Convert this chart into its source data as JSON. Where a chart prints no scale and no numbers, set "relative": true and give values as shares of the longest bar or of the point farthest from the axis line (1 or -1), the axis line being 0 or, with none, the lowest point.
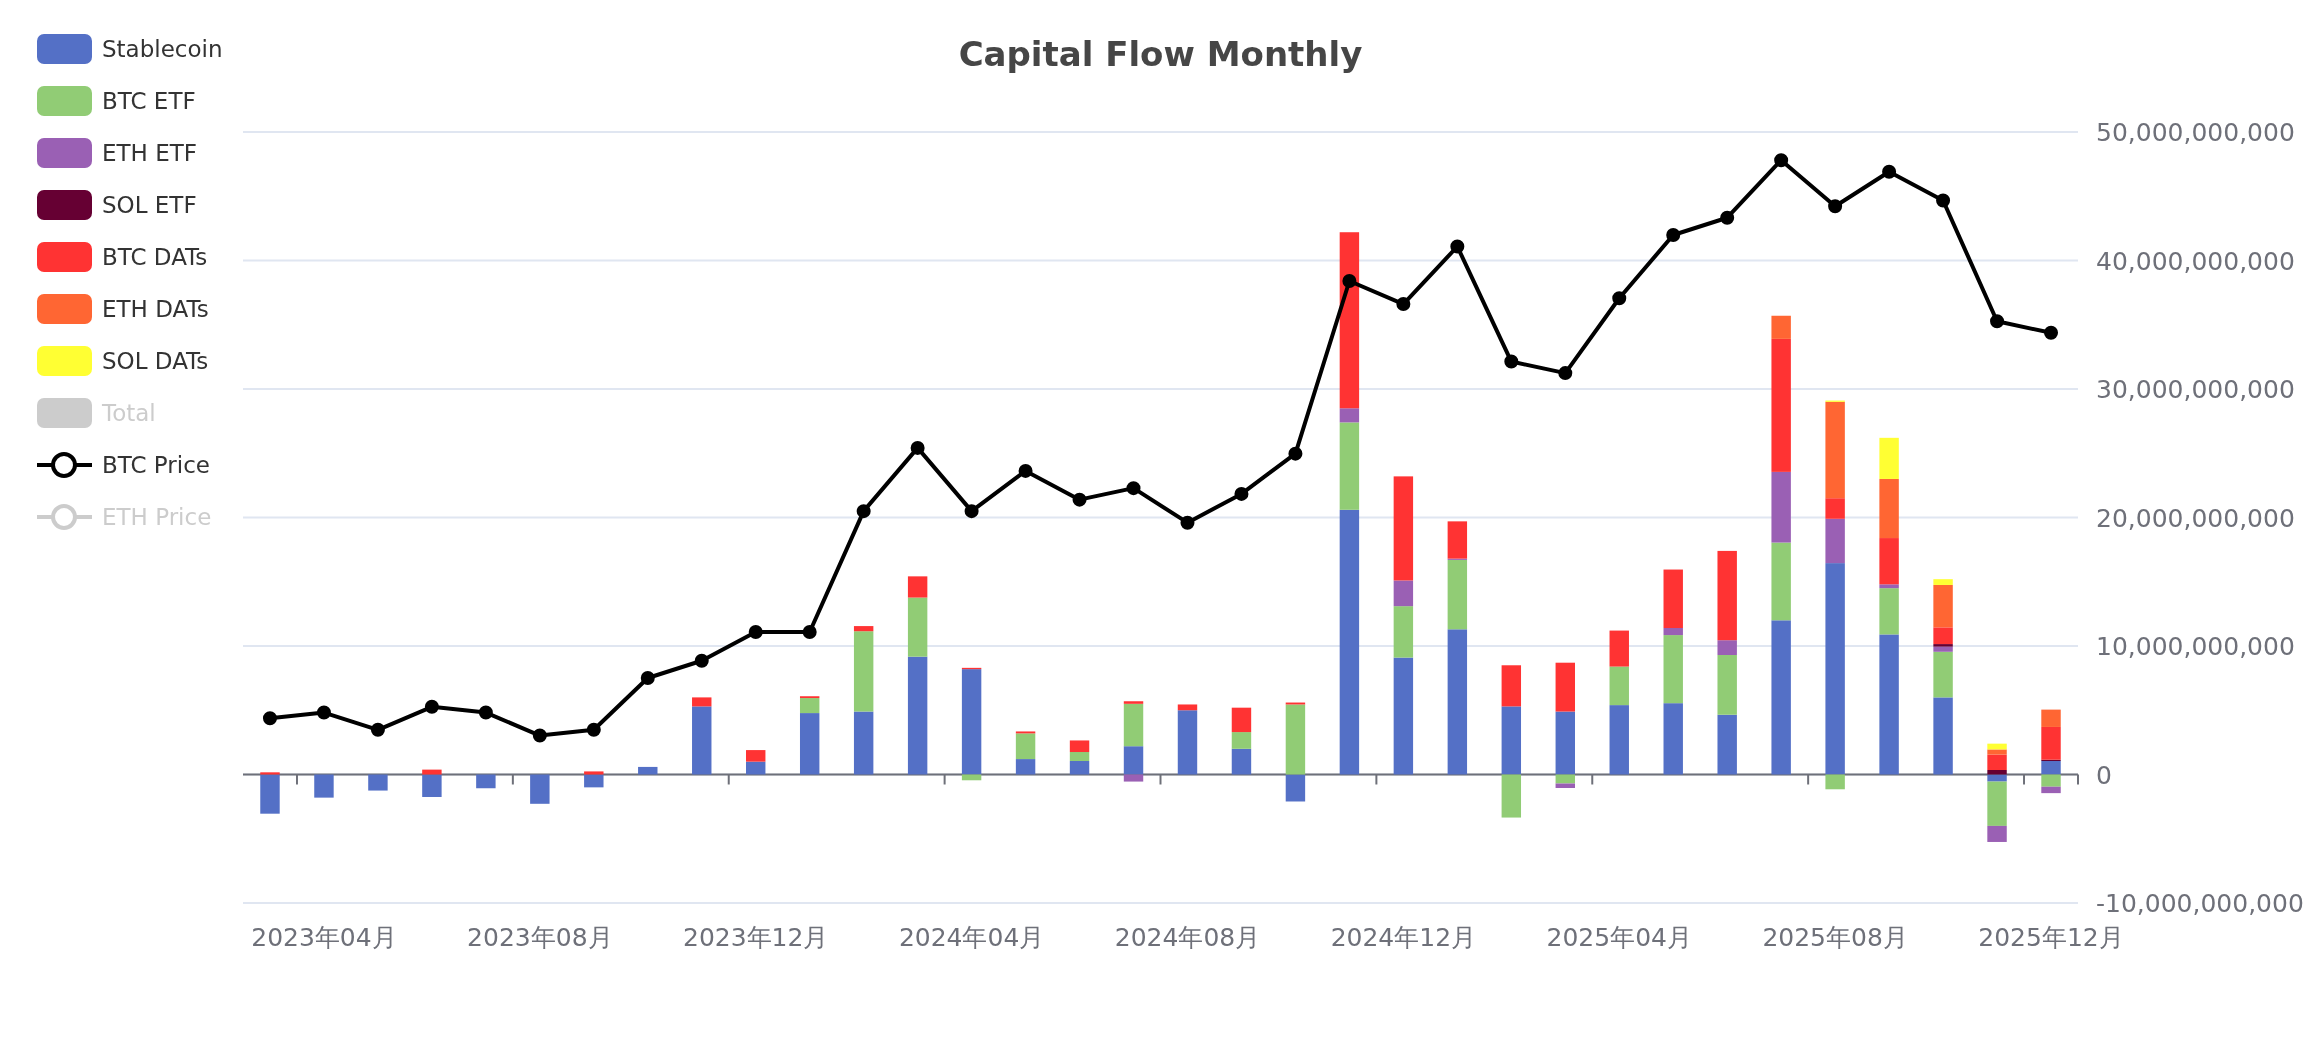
{
  "chart_data": [
    {
      "type": "bar",
      "title": "Capital Flow Monthly",
      "stacked": true,
      "legend": "left",
      "grid": "y",
      "categories": [
        null,
        "2023年04月",
        null,
        null,
        null,
        "2023年08月",
        null,
        null,
        null,
        "2023年12月",
        null,
        null,
        null,
        "2024年04月",
        null,
        null,
        null,
        "2024年08月",
        null,
        null,
        null,
        "2024年12月",
        null,
        null,
        null,
        "2025年04月",
        null,
        null,
        null,
        "2025年08月",
        null,
        null,
        null,
        "2025年12月"
      ],
      "ylim": [
        -10000000000.0,
        50000000000.0
      ],
      "yticks": [
        {
          "value": -10000000000.0,
          "label": "-10,000,000,000"
        },
        0,
        {
          "value": 10000000000.0,
          "label": "10,000,000,000"
        },
        {
          "value": 20000000000.0,
          "label": "20,000,000,000"
        },
        {
          "value": 30000000000.0,
          "label": "30,000,000,000"
        },
        {
          "value": 40000000000.0,
          "label": "40,000,000,000"
        },
        {
          "value": 50000000000.0,
          "label": "50,000,000,000"
        }
      ],
      "series": [
        {
          "name": "Stablecoin",
          "color": "#5470c6",
          "values": [
            -3050000000.0,
            -1800000000.0,
            -1250000000.0,
            -1750000000.0,
            -1070000000.0,
            -2280000000.0,
            -1000000000.0,
            590000000.0,
            5300000000.0,
            1000000000.0,
            4780000000.0,
            4900000000.0,
            9170000000.0,
            8200000000.0,
            1200000000.0,
            1050000000.0,
            2200000000.0,
            5000000000.0,
            2000000000.0,
            -2100000000.0,
            20600000000.0,
            9100000000.0,
            11300000000.0,
            5300000000.0,
            4900000000.0,
            5400000000.0,
            5550000000.0,
            4650000000.0,
            12000000000.0,
            16450000000.0,
            10900000000.0,
            6000000000.0,
            -550000000.0,
            1050000000.0
          ]
        },
        {
          "name": "BTC ETF",
          "color": "#91cc75",
          "values": [
            null,
            null,
            null,
            null,
            null,
            null,
            null,
            null,
            null,
            null,
            1170000000.0,
            6250000000.0,
            4600000000.0,
            -450000000.0,
            2000000000.0,
            700000000.0,
            3300000000.0,
            null,
            1300000000.0,
            5450000000.0,
            6800000000.0,
            4000000000.0,
            5400000000.0,
            -3350000000.0,
            -700000000.0,
            3000000000.0,
            5300000000.0,
            4650000000.0,
            6050000000.0,
            -1150000000.0,
            3600000000.0,
            3550000000.0,
            -3450000000.0,
            -950000000.0
          ]
        },
        {
          "name": "ETH ETF",
          "color": "#9a60b4",
          "values": [
            null,
            null,
            null,
            null,
            null,
            null,
            null,
            null,
            null,
            null,
            null,
            null,
            null,
            null,
            null,
            null,
            -550000000.0,
            null,
            null,
            null,
            1100000000.0,
            2000000000.0,
            100000000.0,
            null,
            -350000000.0,
            null,
            550000000.0,
            1150000000.0,
            5500000000.0,
            3450000000.0,
            300000000.0,
            400000000.0,
            -1250000000.0,
            -500000000.0
          ]
        },
        {
          "name": "SOL ETF",
          "color": "#660033",
          "values": [
            null,
            null,
            null,
            null,
            null,
            null,
            null,
            null,
            null,
            null,
            null,
            null,
            null,
            null,
            null,
            null,
            null,
            null,
            null,
            null,
            null,
            null,
            null,
            null,
            null,
            null,
            null,
            null,
            null,
            null,
            null,
            200000000.0,
            350000000.0,
            100000000.0
          ]
        },
        {
          "name": "BTC DATs",
          "color": "#ff3333",
          "values": [
            170000000.0,
            null,
            null,
            380000000.0,
            null,
            null,
            240000000.0,
            null,
            700000000.0,
            900000000.0,
            140000000.0,
            400000000.0,
            1650000000.0,
            100000000.0,
            150000000.0,
            900000000.0,
            200000000.0,
            450000000.0,
            1900000000.0,
            150000000.0,
            13700000000.0,
            8100000000.0,
            2900000000.0,
            3200000000.0,
            3800000000.0,
            2800000000.0,
            4550000000.0,
            6950000000.0,
            10350000000.0,
            1600000000.0,
            3600000000.0,
            1300000000.0,
            1200000000.0,
            2550000000.0
          ]
        },
        {
          "name": "ETH DATs",
          "color": "#ff6633",
          "values": [
            null,
            null,
            null,
            null,
            null,
            null,
            null,
            null,
            null,
            null,
            null,
            null,
            null,
            null,
            null,
            null,
            null,
            null,
            null,
            null,
            null,
            null,
            null,
            null,
            null,
            null,
            null,
            null,
            1800000000.0,
            7500000000.0,
            4600000000.0,
            3300000000.0,
            400000000.0,
            1350000000.0
          ]
        },
        {
          "name": "SOL DATs",
          "color": "#ffff33",
          "values": [
            null,
            null,
            null,
            null,
            null,
            null,
            null,
            null,
            null,
            null,
            null,
            null,
            null,
            null,
            null,
            null,
            null,
            null,
            null,
            null,
            null,
            null,
            null,
            null,
            null,
            null,
            null,
            null,
            null,
            100000000.0,
            3200000000.0,
            450000000.0,
            450000000.0,
            null
          ]
        },
        {
          "name": "Total",
          "color": "#cccccc",
          "values": [
            null,
            null,
            null,
            null,
            null,
            null,
            null,
            null,
            null,
            null,
            null,
            null,
            null,
            null,
            null,
            null,
            null,
            null,
            null,
            null,
            null,
            null,
            null,
            null,
            null,
            null,
            null,
            null,
            null,
            null,
            null,
            null,
            null,
            null
          ]
        }
      ]
    },
    {
      "type": "line",
      "relative": true,
      "legend": "left",
      "marker": "circle",
      "tick_labels": false,
      "categories": [
        null,
        null,
        null,
        null,
        null,
        null,
        null,
        null,
        null,
        null,
        null,
        null,
        null,
        null,
        null,
        null,
        null,
        null,
        null,
        null,
        null,
        null,
        null,
        null,
        null,
        null,
        null,
        null,
        null,
        null,
        null,
        null,
        null,
        null
      ],
      "series": [
        {
          "name": "BTC Price",
          "color": "#000000",
          "values": [
            0.03,
            0.04,
            0.01,
            0.05,
            0.04,
            0,
            0.01,
            0.1,
            0.13,
            0.18,
            0.18,
            0.39,
            0.5,
            0.39,
            0.46,
            0.41,
            0.43,
            0.37,
            0.42,
            0.49,
            0.79,
            0.75,
            0.85,
            0.65,
            0.63,
            0.76,
            0.87,
            0.9,
            1,
            0.92,
            0.98,
            0.93,
            0.72,
            0.7
          ]
        },
        {
          "name": "ETH Price",
          "color": "#cccccc",
          "values": [
            null,
            null,
            null,
            null,
            null,
            null,
            null,
            null,
            null,
            null,
            null,
            null,
            null,
            null,
            null,
            null,
            null,
            null,
            null,
            null,
            null,
            null,
            null,
            null,
            null,
            null,
            null,
            null,
            null,
            null,
            null,
            null,
            null,
            null
          ]
        }
      ]
    }
  ]
}
